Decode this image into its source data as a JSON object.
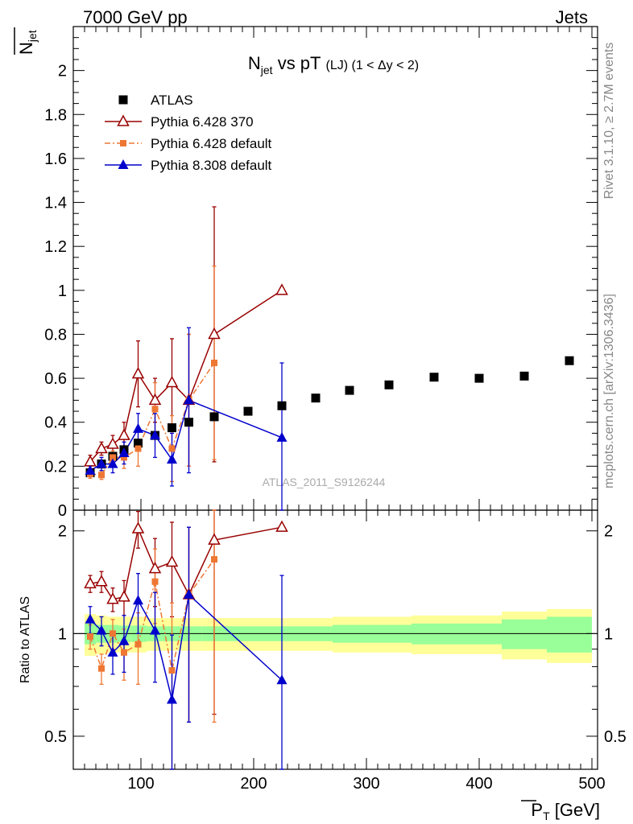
{
  "header": {
    "left": "7000 GeV pp",
    "right": "Jets"
  },
  "side_labels": {
    "rivet": "Rivet 3.1.10, ≥ 2.7M events",
    "mcplots": "mcplots.cern.ch [arXiv:1306.3436]"
  },
  "watermark": "ATLAS_2011_S9126244",
  "chart_data": {
    "type": "scatter",
    "title": {
      "main": "N",
      "main_sub": "jet",
      "rest": " vs pT",
      "small": "(LJ) (1 < Δy < 2)"
    },
    "ylabel": {
      "main": "N",
      "sub": "jet"
    },
    "xlabel": {
      "main": "P",
      "sub": "T",
      "unit": " [GeV]"
    },
    "ratio_ylabel": "Ratio to ATLAS",
    "xlim": [
      40,
      505
    ],
    "ylim": [
      0,
      2.2
    ],
    "ratio_ylim": [
      0.4,
      2.3
    ],
    "ratio_log": true,
    "x_ticks": [
      100,
      200,
      300,
      400,
      500
    ],
    "x_tick_labels": [
      "100",
      "200",
      "300",
      "400",
      "500"
    ],
    "y_ticks": [
      0,
      0.2,
      0.4,
      0.6,
      0.8,
      1,
      1.2,
      1.4,
      1.6,
      1.8,
      2
    ],
    "y_tick_labels": [
      "0",
      "0.2",
      "0.4",
      "0.6",
      "0.8",
      "1",
      "1.2",
      "1.4",
      "1.6",
      "1.8",
      "2"
    ],
    "ratio_ticks": [
      0.5,
      1,
      2
    ],
    "ratio_tick_labels": [
      "0.5",
      "1",
      "2"
    ],
    "legend_position": "top-left",
    "series": [
      {
        "name": "ATLAS",
        "color": "#000000",
        "marker": "square",
        "x": [
          55,
          65,
          75,
          85,
          97.5,
          112.5,
          127.5,
          142.5,
          165,
          195,
          225,
          255,
          285,
          320,
          360,
          400,
          440,
          480
        ],
        "y": [
          0.17,
          0.21,
          0.245,
          0.275,
          0.305,
          0.34,
          0.375,
          0.4,
          0.425,
          0.45,
          0.475,
          0.51,
          0.545,
          0.57,
          0.605,
          0.6,
          0.61,
          0.68
        ],
        "ratio_band_inner": [
          0.07,
          0.06,
          0.06,
          0.055,
          0.055,
          0.05,
          0.05,
          0.05,
          0.05,
          0.05,
          0.05,
          0.05,
          0.06,
          0.06,
          0.07,
          0.07,
          0.1,
          0.12
        ],
        "ratio_band_outer": [
          0.14,
          0.13,
          0.12,
          0.12,
          0.12,
          0.11,
          0.11,
          0.11,
          0.11,
          0.11,
          0.11,
          0.11,
          0.12,
          0.12,
          0.13,
          0.13,
          0.16,
          0.18
        ]
      },
      {
        "name": "Pythia 6.428 370",
        "color": "#990000",
        "marker": "open-triangle",
        "line": "solid",
        "x": [
          55,
          65,
          75,
          85,
          97.5,
          112.5,
          127.5,
          142.5,
          165,
          225
        ],
        "y": [
          0.22,
          0.28,
          0.3,
          0.34,
          0.62,
          0.5,
          0.58,
          0.5,
          0.8,
          1.0
        ],
        "yerr": [
          0.03,
          0.03,
          0.04,
          0.06,
          0.15,
          0.1,
          0.2,
          0.3,
          0.58,
          0.0
        ],
        "ratio": [
          1.4,
          1.42,
          1.26,
          1.28,
          2.03,
          1.55,
          1.62,
          1.3,
          1.88,
          2.05
        ],
        "ratio_err": [
          0.08,
          0.1,
          0.1,
          0.15,
          0.25,
          0.35,
          0.5,
          0.75,
          1.3,
          0.0
        ]
      },
      {
        "name": "Pythia 6.428 default",
        "color": "#ee7733",
        "marker": "square-small",
        "line": "dashdot",
        "x": [
          55,
          65,
          75,
          85,
          97.5,
          112.5,
          127.5,
          142.5,
          165
        ],
        "y": [
          0.165,
          0.16,
          0.24,
          0.24,
          0.28,
          0.46,
          0.28,
          0.5,
          0.67
        ],
        "yerr": [
          0.02,
          0.02,
          0.03,
          0.05,
          0.08,
          0.12,
          0.15,
          0.3,
          0.44
        ],
        "ratio": [
          0.98,
          0.79,
          1.0,
          0.88,
          0.93,
          1.42,
          0.78,
          1.3,
          1.65
        ],
        "ratio_err": [
          0.08,
          0.08,
          0.1,
          0.15,
          0.22,
          0.35,
          0.45,
          0.75,
          1.1
        ]
      },
      {
        "name": "Pythia 8.308 default",
        "color": "#0000cc",
        "marker": "triangle",
        "line": "solid",
        "x": [
          55,
          65,
          75,
          85,
          97.5,
          112.5,
          127.5,
          142.5,
          225
        ],
        "y": [
          0.18,
          0.21,
          0.21,
          0.26,
          0.37,
          0.34,
          0.23,
          0.5,
          0.33
        ],
        "yerr": [
          0.02,
          0.03,
          0.04,
          0.05,
          0.07,
          0.1,
          0.12,
          0.33,
          0.34
        ],
        "ratio": [
          1.1,
          1.02,
          0.88,
          0.95,
          1.25,
          1.02,
          0.64,
          1.3,
          0.73
        ],
        "ratio_err": [
          0.1,
          0.1,
          0.12,
          0.18,
          0.25,
          0.3,
          0.35,
          0.75,
          0.75
        ]
      }
    ]
  }
}
